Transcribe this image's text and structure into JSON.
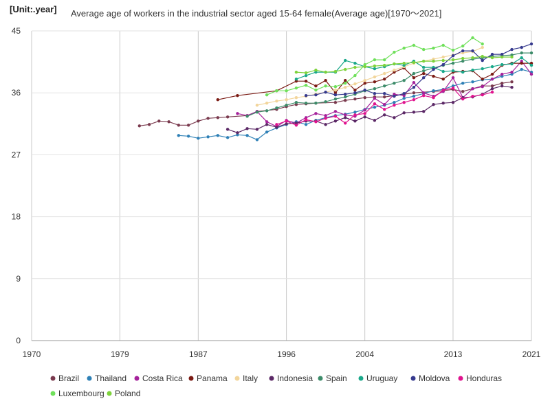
{
  "unit_label": "[Unit:.year]",
  "chart_data": {
    "type": "line",
    "title": "Average age of workers in the industrial sector aged 15-64 female(Average age)[1970～2021]",
    "xlabel": "",
    "ylabel": "",
    "xlim": [
      1970,
      2021
    ],
    "ylim": [
      0,
      45
    ],
    "x_ticks": [
      1970,
      1979,
      1987,
      1996,
      2004,
      2013,
      2021
    ],
    "y_ticks": [
      0,
      9,
      18,
      27,
      36,
      45
    ],
    "grid": "vertical",
    "legend_position": "bottom",
    "series": [
      {
        "name": "Brazil",
        "color": "#7a3a4e",
        "x": [
          1981,
          1982,
          1983,
          1984,
          1985,
          1986,
          1987,
          1988,
          1989,
          1990,
          1992,
          1993,
          1995,
          1996,
          1997,
          1998,
          1999,
          2001,
          2002,
          2003,
          2004,
          2005,
          2006,
          2007,
          2008,
          2009,
          2011,
          2012,
          2013,
          2014,
          2015,
          2016,
          2017,
          2018,
          2019
        ],
        "y": [
          31.2,
          31.4,
          31.9,
          31.8,
          31.3,
          31.3,
          31.9,
          32.3,
          32.4,
          32.5,
          32.7,
          33.3,
          33.6,
          34.0,
          34.3,
          34.4,
          34.5,
          34.6,
          34.9,
          35.1,
          35.3,
          35.4,
          35.4,
          35.6,
          35.8,
          36.0,
          36.2,
          36.3,
          36.5,
          36.2,
          36.6,
          37.0,
          37.0,
          37.4,
          37.6
        ]
      },
      {
        "name": "Thailand",
        "color": "#2e80b6",
        "x": [
          1985,
          1986,
          1987,
          1988,
          1989,
          1990,
          1991,
          1992,
          1993,
          1994,
          1995,
          1996,
          1997,
          1998,
          1999,
          2000,
          2001,
          2002,
          2003,
          2004,
          2005,
          2006,
          2007,
          2008,
          2009,
          2010,
          2011,
          2012,
          2013,
          2014,
          2015,
          2016,
          2017,
          2018,
          2019,
          2020,
          2021
        ],
        "y": [
          29.8,
          29.7,
          29.4,
          29.6,
          29.8,
          29.5,
          29.9,
          29.8,
          29.2,
          30.3,
          30.9,
          31.4,
          31.8,
          31.4,
          32.0,
          32.4,
          32.7,
          32.9,
          33.2,
          33.6,
          33.9,
          34.2,
          34.6,
          35.2,
          35.5,
          35.9,
          36.3,
          36.5,
          37.0,
          37.4,
          37.6,
          37.9,
          38.0,
          38.4,
          38.7,
          39.4,
          39.0
        ]
      },
      {
        "name": "Costa Rica",
        "color": "#a5229b",
        "x": [
          1991,
          1992,
          1993,
          1994,
          1995,
          1996,
          1997,
          1998,
          1999,
          2000,
          2001,
          2002,
          2003,
          2004,
          2005,
          2006,
          2007,
          2008,
          2009,
          2010,
          2011,
          2012,
          2013,
          2014,
          2015,
          2016,
          2017,
          2018,
          2019,
          2020,
          2021
        ],
        "y": [
          33.0,
          32.7,
          33.3,
          31.8,
          31.1,
          32.0,
          31.6,
          32.4,
          33.0,
          32.7,
          33.3,
          32.8,
          32.6,
          33.5,
          35.2,
          34.3,
          35.8,
          35.6,
          37.5,
          36.0,
          35.5,
          36.2,
          38.2,
          35.3,
          36.6,
          36.9,
          38.0,
          38.7,
          39.0,
          40.6,
          38.7
        ]
      },
      {
        "name": "Panama",
        "color": "#7b1b14",
        "x": [
          1989,
          1991,
          1995,
          1997,
          1998,
          1999,
          2000,
          2001,
          2002,
          2003,
          2004,
          2005,
          2006,
          2007,
          2008,
          2009,
          2010,
          2011,
          2012,
          2013,
          2014,
          2015,
          2016,
          2017,
          2018,
          2019,
          2020,
          2021
        ],
        "y": [
          35.0,
          35.6,
          36.3,
          37.7,
          37.7,
          37.0,
          37.8,
          36.0,
          37.8,
          36.4,
          37.4,
          37.6,
          38.0,
          39.0,
          39.6,
          38.2,
          38.8,
          38.4,
          38.0,
          39.0,
          39.1,
          39.2,
          38.0,
          38.7,
          40.0,
          40.3,
          40.3,
          40.3
        ]
      },
      {
        "name": "Italy",
        "color": "#f2d59b",
        "x": [
          1993,
          1994,
          1995,
          1996,
          1997,
          1998,
          1999,
          2000,
          2001,
          2002,
          2003,
          2004,
          2005,
          2006,
          2007,
          2008,
          2009,
          2010,
          2011,
          2012,
          2013,
          2014,
          2015,
          2016
        ],
        "y": [
          34.2,
          34.5,
          34.8,
          35.0,
          35.3,
          35.5,
          35.8,
          36.1,
          36.4,
          36.8,
          37.3,
          37.8,
          38.3,
          38.8,
          39.3,
          39.8,
          40.3,
          40.6,
          40.9,
          41.2,
          41.5,
          41.8,
          42.0,
          42.6
        ]
      },
      {
        "name": "Indonesia",
        "color": "#5b2866",
        "x": [
          1990,
          1991,
          1992,
          1993,
          1994,
          1995,
          1996,
          1997,
          1998,
          1999,
          2000,
          2001,
          2002,
          2003,
          2004,
          2005,
          2006,
          2007,
          2008,
          2009,
          2010,
          2011,
          2012,
          2013,
          2014,
          2015,
          2016,
          2017,
          2018,
          2019
        ],
        "y": [
          30.7,
          30.2,
          30.8,
          30.7,
          31.4,
          31.0,
          31.5,
          31.6,
          31.9,
          31.9,
          31.4,
          31.9,
          32.4,
          31.9,
          32.5,
          32.0,
          32.8,
          32.4,
          33.1,
          33.2,
          33.3,
          34.3,
          34.5,
          34.6,
          35.3,
          35.4,
          35.8,
          36.6,
          37.0,
          36.8
        ]
      },
      {
        "name": "Spain",
        "color": "#3d8c6a",
        "x": [
          1992,
          1993,
          1994,
          1995,
          1996,
          1997,
          1998,
          1999,
          2000,
          2001,
          2002,
          2003,
          2004,
          2005,
          2006,
          2007,
          2008,
          2009,
          2010,
          2011,
          2012,
          2013,
          2014,
          2015,
          2016,
          2017,
          2018,
          2019,
          2020,
          2021
        ],
        "y": [
          32.6,
          33.2,
          33.4,
          33.8,
          34.2,
          34.6,
          34.5,
          34.5,
          34.7,
          35.1,
          35.4,
          35.8,
          36.3,
          36.6,
          37.0,
          37.4,
          37.8,
          38.8,
          39.2,
          39.6,
          40.0,
          40.3,
          40.6,
          40.9,
          41.1,
          41.3,
          41.4,
          41.5,
          41.8,
          41.8
        ]
      },
      {
        "name": "Uruguay",
        "color": "#1aa88a",
        "x": [
          1997,
          1998,
          1999,
          2000,
          2001,
          2002,
          2003,
          2004,
          2005,
          2006,
          2007,
          2008,
          2009,
          2010,
          2011,
          2012,
          2013,
          2014,
          2015,
          2016,
          2017,
          2018,
          2019,
          2020,
          2021
        ],
        "y": [
          38.0,
          38.5,
          39.0,
          39.0,
          39.0,
          40.7,
          40.3,
          39.8,
          39.5,
          39.8,
          40.2,
          40.0,
          40.6,
          39.7,
          39.7,
          39.1,
          39.2,
          39.0,
          39.3,
          39.5,
          39.8,
          40.1,
          40.2,
          41.1,
          40.0
        ]
      },
      {
        "name": "Moldova",
        "color": "#363a8e",
        "x": [
          1998,
          1999,
          2000,
          2001,
          2002,
          2003,
          2004,
          2005,
          2006,
          2007,
          2008,
          2009,
          2010,
          2011,
          2012,
          2013,
          2014,
          2015,
          2016,
          2017,
          2018,
          2019,
          2020,
          2021
        ],
        "y": [
          35.6,
          35.7,
          36.1,
          35.7,
          35.8,
          36.0,
          36.4,
          35.9,
          35.9,
          35.5,
          35.9,
          36.8,
          38.2,
          39.4,
          40.1,
          41.4,
          42.1,
          42.1,
          40.7,
          41.6,
          41.6,
          42.3,
          42.6,
          43.1
        ]
      },
      {
        "name": "Honduras",
        "color": "#e0138e",
        "x": [
          1995,
          1996,
          1997,
          1998,
          1999,
          2000,
          2001,
          2002,
          2003,
          2004,
          2005,
          2006,
          2007,
          2008,
          2009,
          2010,
          2011,
          2012,
          2013,
          2014,
          2015,
          2016,
          2017
        ],
        "y": [
          31.4,
          31.9,
          31.3,
          32.1,
          31.8,
          32.3,
          32.6,
          31.6,
          32.8,
          33.0,
          34.4,
          33.6,
          34.2,
          34.6,
          35.0,
          35.6,
          35.3,
          36.4,
          36.7,
          35.1,
          35.5,
          35.7,
          36.1
        ]
      },
      {
        "name": "Luxembourg",
        "color": "#6fe05a",
        "x": [
          1994,
          1995,
          1996,
          1997,
          1998,
          1999,
          2000,
          2001,
          2002,
          2003,
          2004,
          2005,
          2006,
          2007,
          2008,
          2009,
          2010,
          2011,
          2012,
          2013,
          2014,
          2015,
          2016
        ],
        "y": [
          35.7,
          36.3,
          36.3,
          36.7,
          37.1,
          36.4,
          37.0,
          36.9,
          37.4,
          38.5,
          40.1,
          40.8,
          40.8,
          41.9,
          42.5,
          42.9,
          42.3,
          42.5,
          42.9,
          42.2,
          42.8,
          44.0,
          43.1
        ]
      },
      {
        "name": "Poland",
        "color": "#7ed33c",
        "x": [
          1997,
          1998,
          1999,
          2000,
          2001,
          2002,
          2003,
          2004,
          2005,
          2006,
          2007,
          2008,
          2009,
          2010,
          2011,
          2012,
          2013,
          2014,
          2015,
          2016,
          2017,
          2018,
          2019
        ],
        "y": [
          39.0,
          38.9,
          39.3,
          39.0,
          39.1,
          39.4,
          39.7,
          39.8,
          39.9,
          40.0,
          40.2,
          40.3,
          40.4,
          40.6,
          40.6,
          40.7,
          40.8,
          41.0,
          41.1,
          41.3,
          41.1,
          41.2,
          41.2
        ]
      }
    ]
  }
}
